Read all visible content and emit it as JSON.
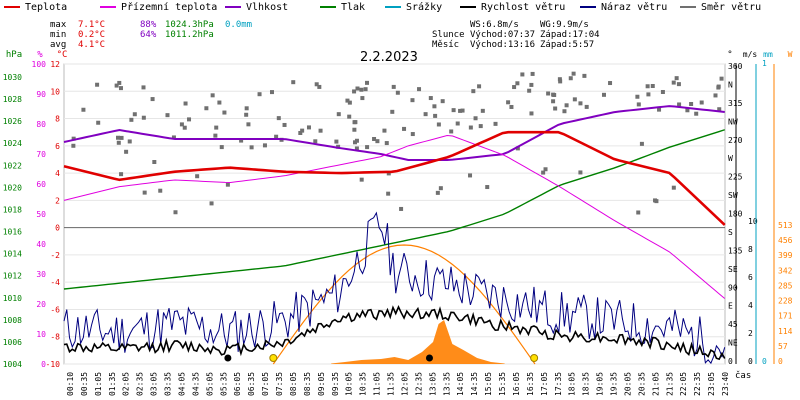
{
  "legend": [
    {
      "label": "Teplota",
      "color": "#e00000"
    },
    {
      "label": "Přízemní teplota",
      "color": "#e000e0"
    },
    {
      "label": "Vlhkost",
      "color": "#8000c0"
    },
    {
      "label": "Tlak",
      "color": "#008000"
    },
    {
      "label": "Srážky",
      "color": "#00a0c0"
    },
    {
      "label": "Rychlost větru",
      "color": "#000000"
    },
    {
      "label": "Náraz větru",
      "color": "#000080"
    },
    {
      "label": "Směr větru",
      "color": "#707070"
    }
  ],
  "stats": {
    "max_label": "max",
    "max_temp": "7.1°C",
    "max_hum": "88%",
    "max_press": "1024.3hPa",
    "max_rain": "0.0mm",
    "min_label": "min",
    "min_temp": "0.2°C",
    "min_hum": "64%",
    "min_press": "1011.2hPa",
    "avg_label": "avg",
    "avg_temp": "4.1°C",
    "ws": "WS:6.8m/s",
    "wg": "WG:9.9m/s",
    "sun_label": "Slunce",
    "sunrise": "Východ:07:37",
    "sunset": "Západ:17:04",
    "moon_label": "Měsíc",
    "moonrise": "Východ:13:16",
    "moonset": "Západ:5:57"
  },
  "chart_data": {
    "type": "line",
    "title": "2.2.2023",
    "xlabel": "čas",
    "x_ticks": [
      "00:10",
      "00:35",
      "01:05",
      "01:35",
      "02:05",
      "02:35",
      "03:05",
      "03:35",
      "04:05",
      "04:35",
      "05:05",
      "05:35",
      "06:05",
      "06:35",
      "07:05",
      "07:35",
      "08:05",
      "08:35",
      "09:05",
      "09:35",
      "10:05",
      "10:35",
      "11:05",
      "11:35",
      "12:05",
      "12:35",
      "13:05",
      "13:35",
      "14:05",
      "14:35",
      "15:05",
      "15:35",
      "16:05",
      "16:35",
      "17:05",
      "17:35",
      "18:05",
      "18:35",
      "19:05",
      "19:35",
      "20:05",
      "20:35",
      "21:05",
      "21:35",
      "22:05",
      "22:35",
      "23:05",
      "23:40"
    ],
    "axes": {
      "hpa": {
        "label": "hPa",
        "color": "#008000",
        "ticks": [
          "1030",
          "1028",
          "1026",
          "1024",
          "1022",
          "1020",
          "1018",
          "1016",
          "1014",
          "1012",
          "1010",
          "1008",
          "1006",
          "1004"
        ]
      },
      "pct": {
        "label": "%",
        "color": "#e000e0",
        "ticks": [
          "100",
          "90",
          "80",
          "70",
          "60",
          "50",
          "40",
          "30",
          "20",
          "10",
          "0"
        ]
      },
      "degc": {
        "label": "°C",
        "color": "#e00000",
        "ticks": [
          "12",
          "10",
          "8",
          "6",
          "4",
          "2",
          "0",
          "-2",
          "-4",
          "-6",
          "-8",
          "-10"
        ]
      },
      "deg": {
        "label": "°",
        "color": "#000000",
        "ticks": [
          "360",
          "N",
          "315",
          "NW",
          "270",
          "W",
          "225",
          "SW",
          "180",
          "S",
          "135",
          "SE",
          "90",
          "E",
          "45",
          "NE",
          "0"
        ]
      },
      "ms": {
        "label": "m/s",
        "color": "#000000",
        "ticks": [
          "10",
          "8",
          "6",
          "4",
          "2",
          "0"
        ]
      },
      "mm": {
        "label": "mm",
        "color": "#00a0c0",
        "ticks": [
          "1",
          "0"
        ]
      },
      "wm2": {
        "label": "W",
        "color": "#ff8000",
        "ticks": [
          "513",
          "456",
          "399",
          "342",
          "285",
          "228",
          "171",
          "114",
          "57",
          "0"
        ]
      }
    },
    "ylim_temp": [
      -10,
      12
    ],
    "series": [
      {
        "name": "Teplota",
        "color": "#e00000",
        "x": [
          0,
          2,
          4,
          6,
          8,
          10,
          12,
          14,
          16,
          18,
          20,
          22,
          23.99
        ],
        "values": [
          4.5,
          3.5,
          4.1,
          4.4,
          4.1,
          4.0,
          4.1,
          5.2,
          7.0,
          7.0,
          5.0,
          4.0,
          0.2
        ]
      },
      {
        "name": "Přízemní teplota",
        "color": "#e000e0",
        "x": [
          0,
          2,
          4,
          6,
          8,
          10,
          11.5,
          12.5,
          14,
          16,
          18,
          20,
          22,
          23.99
        ],
        "values": [
          2.0,
          3.0,
          3.5,
          3.3,
          3.8,
          4.6,
          5.2,
          6.0,
          6.8,
          5.3,
          3.0,
          0.5,
          -1.8,
          -5.2
        ]
      },
      {
        "name": "Vlhkost",
        "color": "#8000c0",
        "x": [
          0,
          2,
          4,
          6,
          8,
          10,
          11.5,
          12.5,
          14,
          16,
          18,
          20,
          22,
          23.99
        ],
        "values": [
          74,
          78,
          75,
          75,
          75,
          72,
          70,
          68,
          68,
          70,
          80,
          84,
          86,
          84
        ]
      },
      {
        "name": "Tlak",
        "color": "#008000",
        "x": [
          0,
          2,
          4,
          6,
          8,
          10,
          12,
          14,
          16,
          18,
          20,
          22,
          23.99
        ],
        "values": [
          1010.5,
          1011.0,
          1011.5,
          1012.0,
          1012.5,
          1013.5,
          1014.5,
          1015.5,
          1017.0,
          1019.5,
          1021.0,
          1022.8,
          1024.3
        ]
      },
      {
        "name": "Rychlost větru",
        "color": "#000000",
        "x": [
          0,
          2,
          4,
          6,
          8,
          10,
          12,
          14,
          16,
          18,
          20,
          22,
          23.99
        ],
        "values": [
          1.2,
          1.0,
          1.3,
          1.0,
          1.5,
          3.2,
          3.6,
          3.4,
          2.6,
          2.0,
          1.8,
          1.3,
          0.5
        ]
      },
      {
        "name": "Náraz větru",
        "color": "#000080",
        "x": [
          0,
          2,
          4,
          6,
          8,
          10,
          11.5,
          12,
          14,
          16,
          18,
          20,
          22,
          23.99
        ],
        "values": [
          2.5,
          2.2,
          2.8,
          2.2,
          3.0,
          5.0,
          9.9,
          6.5,
          5.5,
          4.5,
          3.5,
          3.0,
          2.5,
          1.2
        ]
      },
      {
        "name": "Srážky",
        "color": "#00a0c0",
        "x": [
          0,
          23.99
        ],
        "values": [
          0,
          0
        ]
      }
    ]
  }
}
